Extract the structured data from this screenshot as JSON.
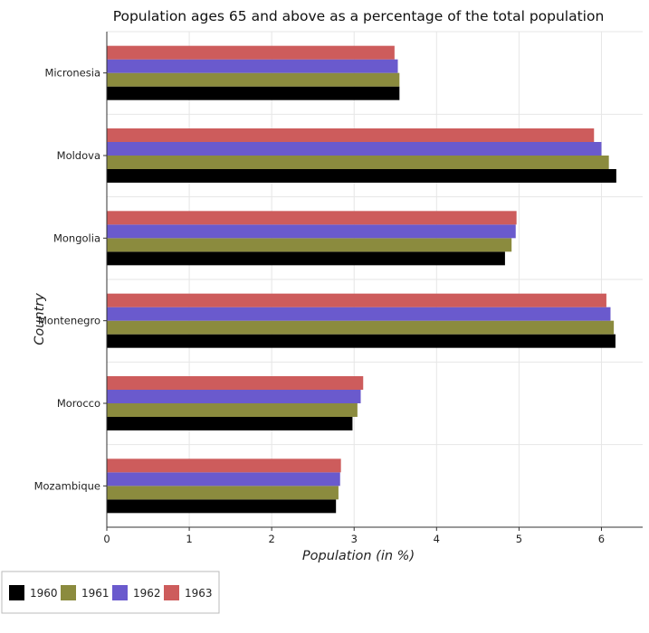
{
  "chart_data": {
    "type": "bar",
    "orientation": "horizontal",
    "title": "Population ages 65 and above as a percentage of the total population",
    "xlabel": "Population (in %)",
    "ylabel": "Country",
    "xlim": [
      0,
      6.5
    ],
    "xticks": [
      0,
      1,
      2,
      3,
      4,
      5,
      6
    ],
    "grid": true,
    "legend_placement": "bottom-left",
    "categories": [
      "Micronesia",
      "Moldova",
      "Mongolia",
      "Montenegro",
      "Morocco",
      "Mozambique"
    ],
    "series": [
      {
        "name": "1960",
        "color": "#000000",
        "values": [
          3.55,
          6.18,
          4.83,
          6.17,
          2.98,
          2.78
        ]
      },
      {
        "name": "1961",
        "color": "#8b8b3e",
        "values": [
          3.55,
          6.09,
          4.91,
          6.15,
          3.04,
          2.81
        ]
      },
      {
        "name": "1962",
        "color": "#6a5acd",
        "values": [
          3.53,
          6.0,
          4.96,
          6.11,
          3.08,
          2.83
        ]
      },
      {
        "name": "1963",
        "color": "#cd5c5c",
        "values": [
          3.49,
          5.91,
          4.97,
          6.06,
          3.11,
          2.84
        ]
      }
    ]
  }
}
